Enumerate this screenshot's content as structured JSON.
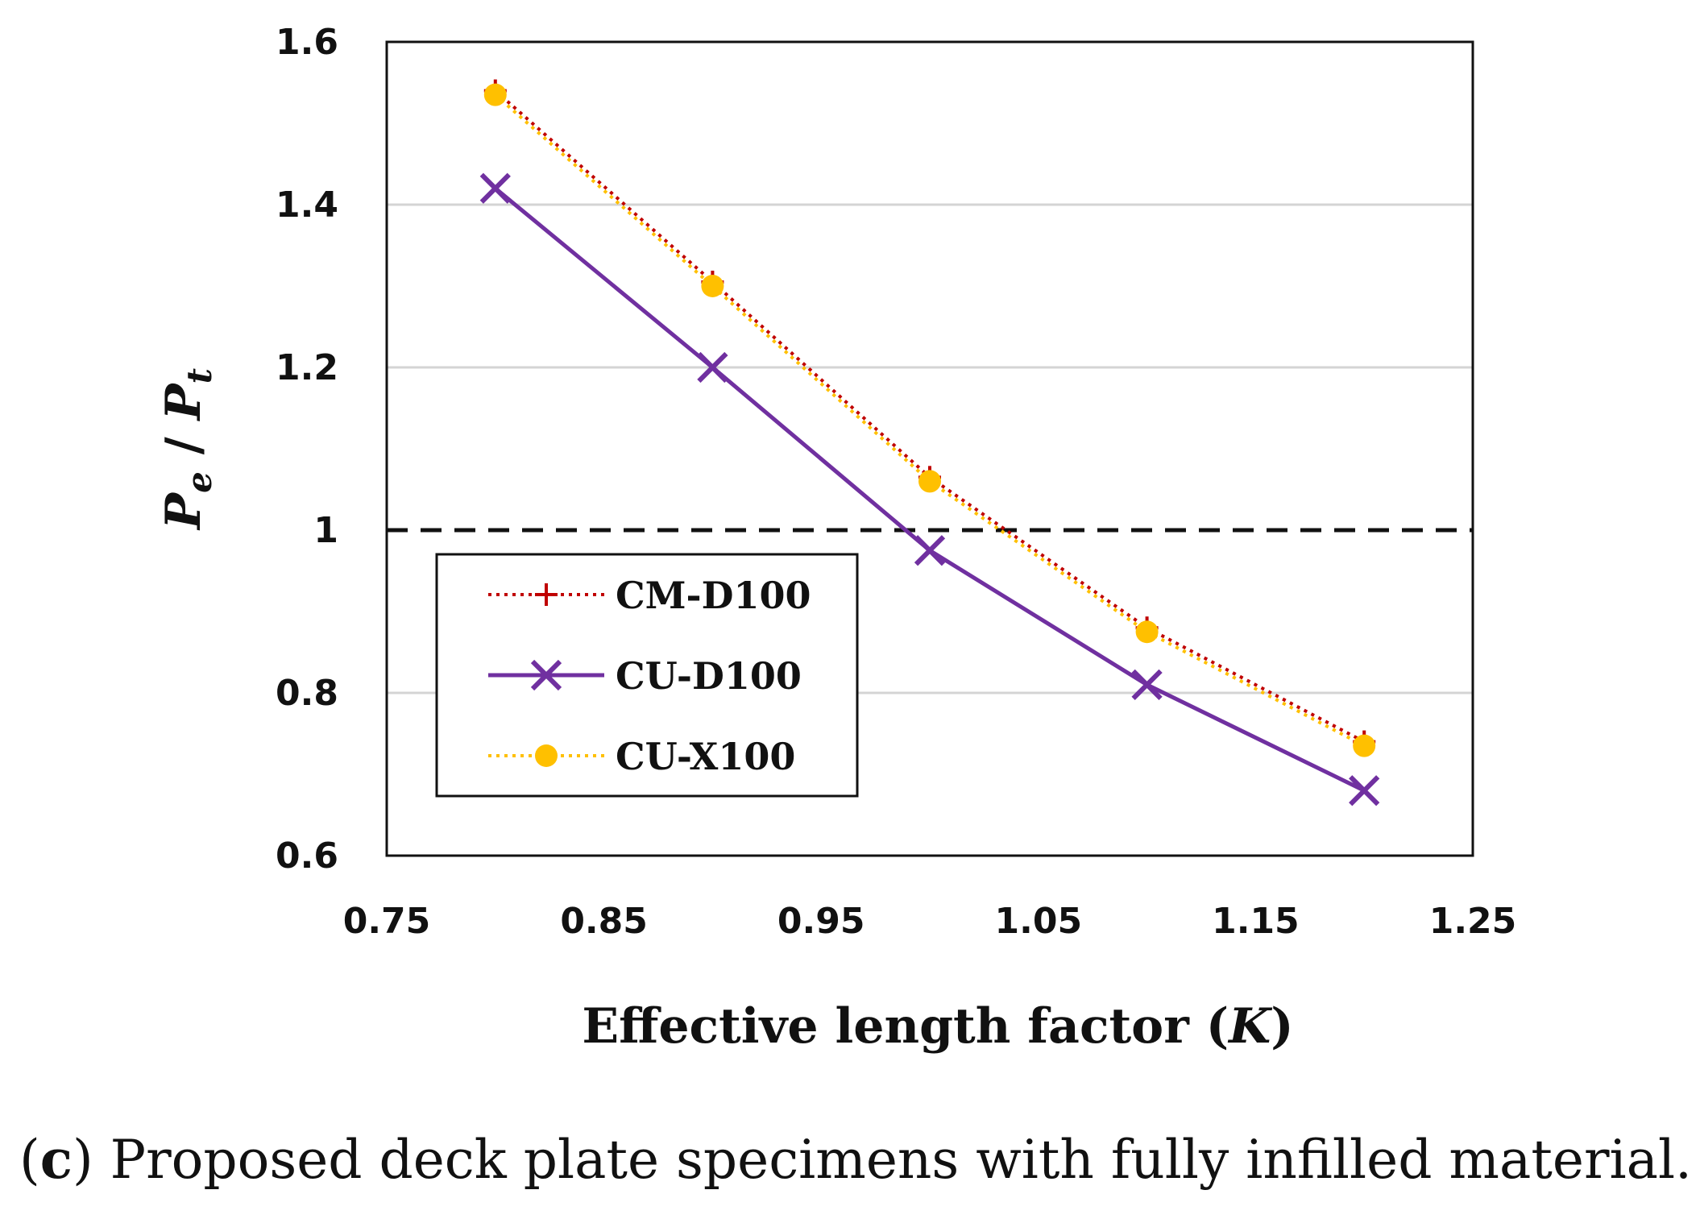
{
  "chart_data": {
    "type": "line",
    "title": "",
    "xlabel": "Effective length factor (K)",
    "xlabel_parts": {
      "main": "Effective length factor (",
      "var": "K",
      "close": ")"
    },
    "ylabel": "Pe / Pt",
    "ylabel_parts": {
      "p1": "P",
      "sub1": "e",
      "sep": " / ",
      "p2": "P",
      "sub2": "t"
    },
    "xlim": [
      0.75,
      1.25
    ],
    "ylim": [
      0.6,
      1.6
    ],
    "xticks": [
      0.75,
      0.85,
      0.95,
      1.05,
      1.15,
      1.25
    ],
    "xtick_labels": [
      "0.75",
      "0.85",
      "0.95",
      "1.05",
      "1.15",
      "1.25"
    ],
    "yticks": [
      0.6,
      0.8,
      1.0,
      1.2,
      1.4,
      1.6
    ],
    "ytick_labels": [
      "0.6",
      "0.8",
      "1",
      "1.2",
      "1.4",
      "1.6"
    ],
    "grid": "horizontal",
    "reference_line": {
      "y": 1.0,
      "style": "dashed",
      "color": "#111111"
    },
    "legend_position": "lower-left",
    "series": [
      {
        "name": "CM-D100",
        "color": "#c00000",
        "line": "dotted",
        "marker": "plus",
        "x": [
          0.8,
          0.9,
          1.0,
          1.1,
          1.2
        ],
        "values": [
          1.54,
          1.305,
          1.065,
          0.88,
          0.74
        ]
      },
      {
        "name": "CU-D100",
        "color": "#7030a0",
        "line": "solid",
        "marker": "x",
        "x": [
          0.8,
          0.9,
          1.0,
          1.1,
          1.2
        ],
        "values": [
          1.42,
          1.2,
          0.975,
          0.81,
          0.68
        ]
      },
      {
        "name": "CU-X100",
        "color": "#ffc000",
        "line": "dotted",
        "marker": "circle",
        "x": [
          0.8,
          0.9,
          1.0,
          1.1,
          1.2
        ],
        "values": [
          1.535,
          1.3,
          1.06,
          0.875,
          0.735
        ]
      }
    ]
  },
  "caption": {
    "letter": "c",
    "open": "(",
    "close": ")",
    "text": " Proposed deck plate specimens with fully infilled material."
  }
}
